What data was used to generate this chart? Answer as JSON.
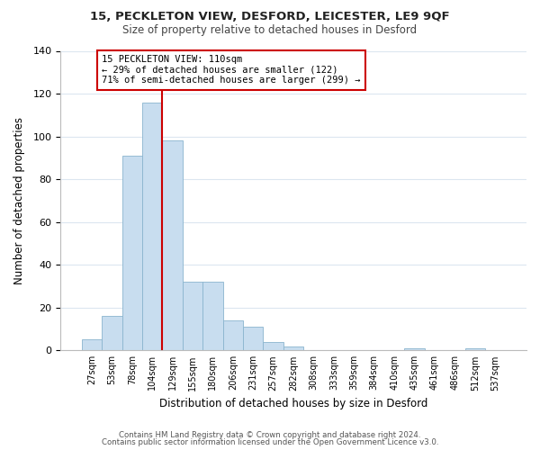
{
  "title1": "15, PECKLETON VIEW, DESFORD, LEICESTER, LE9 9QF",
  "title2": "Size of property relative to detached houses in Desford",
  "xlabel": "Distribution of detached houses by size in Desford",
  "ylabel": "Number of detached properties",
  "bar_color": "#c8ddef",
  "bar_edge_color": "#8ab4ce",
  "bins": [
    "27sqm",
    "53sqm",
    "78sqm",
    "104sqm",
    "129sqm",
    "155sqm",
    "180sqm",
    "206sqm",
    "231sqm",
    "257sqm",
    "282sqm",
    "308sqm",
    "333sqm",
    "359sqm",
    "384sqm",
    "410sqm",
    "435sqm",
    "461sqm",
    "486sqm",
    "512sqm",
    "537sqm"
  ],
  "values": [
    5,
    16,
    91,
    116,
    98,
    32,
    32,
    14,
    11,
    4,
    2,
    0,
    0,
    0,
    0,
    0,
    1,
    0,
    0,
    1,
    0
  ],
  "vline_bin_index": 3,
  "vline_color": "#cc0000",
  "annotation_line1": "15 PECKLETON VIEW: 110sqm",
  "annotation_line2": "← 29% of detached houses are smaller (122)",
  "annotation_line3": "71% of semi-detached houses are larger (299) →",
  "annotation_box_edge": "#cc0000",
  "ylim": [
    0,
    140
  ],
  "yticks": [
    0,
    20,
    40,
    60,
    80,
    100,
    120,
    140
  ],
  "footer1": "Contains HM Land Registry data © Crown copyright and database right 2024.",
  "footer2": "Contains public sector information licensed under the Open Government Licence v3.0.",
  "background_color": "#ffffff",
  "grid_color": "#dce6f0"
}
